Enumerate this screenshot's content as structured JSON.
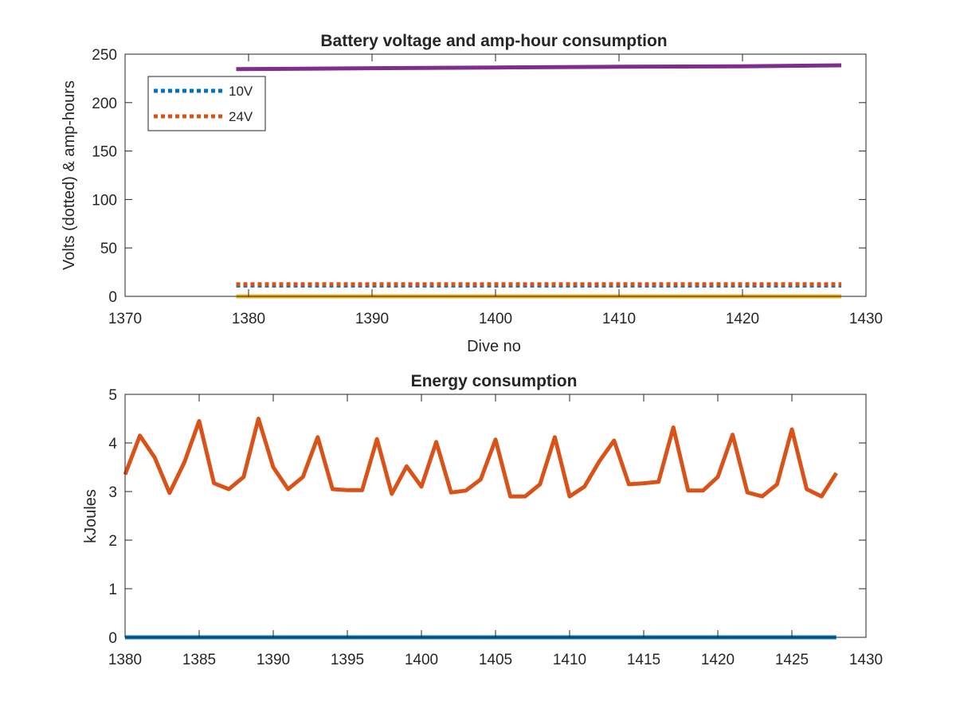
{
  "chart_data": [
    {
      "type": "line",
      "title": "Battery voltage and amp-hour consumption",
      "xlabel": "Dive no",
      "ylabel": "Volts (dotted) & amp-hours",
      "xlim": [
        1370,
        1430
      ],
      "ylim": [
        0,
        250
      ],
      "xticks": [
        1370,
        1380,
        1390,
        1400,
        1410,
        1420,
        1430
      ],
      "yticks": [
        0,
        50,
        100,
        150,
        200,
        250
      ],
      "grid": false,
      "legend_position": "top-left",
      "series": [
        {
          "name": "10V",
          "style": "dotted",
          "color": "#0072BD",
          "x": [
            1379,
            1428
          ],
          "y": [
            11.2,
            11.2
          ]
        },
        {
          "name": "24V",
          "style": "dotted",
          "color": "#D95319",
          "x": [
            1379,
            1428
          ],
          "y": [
            12.5,
            12.5
          ]
        },
        {
          "style": "solid",
          "color": "#7E2F8E",
          "x": [
            1379,
            1390,
            1400,
            1410,
            1420,
            1428
          ],
          "y": [
            234.5,
            235.5,
            236.3,
            237,
            237.5,
            238.5
          ]
        },
        {
          "style": "solid",
          "color": "#EDB120",
          "x": [
            1379,
            1428
          ],
          "y": [
            0,
            0
          ]
        }
      ]
    },
    {
      "type": "line",
      "title": "Energy consumption",
      "xlabel": "",
      "ylabel": "kJoules",
      "xlim": [
        1380,
        1430
      ],
      "ylim": [
        0,
        5
      ],
      "xticks": [
        1380,
        1385,
        1390,
        1395,
        1400,
        1405,
        1410,
        1415,
        1420,
        1425,
        1430
      ],
      "yticks": [
        0,
        1,
        2,
        3,
        4,
        5
      ],
      "grid": false,
      "series": [
        {
          "style": "solid",
          "color": "#0072BD",
          "x": [
            1380,
            1428
          ],
          "y": [
            0,
            0
          ]
        },
        {
          "style": "solid",
          "color": "#D95319",
          "x": [
            1380,
            1381,
            1382,
            1383,
            1384,
            1385,
            1386,
            1387,
            1388,
            1389,
            1390,
            1391,
            1392,
            1393,
            1394,
            1395,
            1396,
            1397,
            1398,
            1399,
            1400,
            1401,
            1402,
            1403,
            1404,
            1405,
            1406,
            1407,
            1408,
            1409,
            1410,
            1411,
            1412,
            1413,
            1414,
            1415,
            1416,
            1417,
            1418,
            1419,
            1420,
            1421,
            1422,
            1423,
            1424,
            1425,
            1426,
            1427,
            1428
          ],
          "y": [
            3.35,
            4.15,
            3.7,
            2.97,
            3.6,
            4.45,
            3.17,
            3.05,
            3.3,
            4.5,
            3.5,
            3.05,
            3.3,
            4.12,
            3.05,
            3.03,
            3.03,
            4.08,
            2.95,
            3.52,
            3.1,
            4.02,
            2.98,
            3.02,
            3.25,
            4.07,
            2.9,
            2.9,
            3.15,
            4.12,
            2.9,
            3.1,
            3.62,
            4.05,
            3.15,
            3.17,
            3.2,
            4.32,
            3.02,
            3.02,
            3.3,
            4.17,
            2.98,
            2.9,
            3.15,
            4.28,
            3.05,
            2.9,
            3.38
          ]
        }
      ]
    }
  ]
}
